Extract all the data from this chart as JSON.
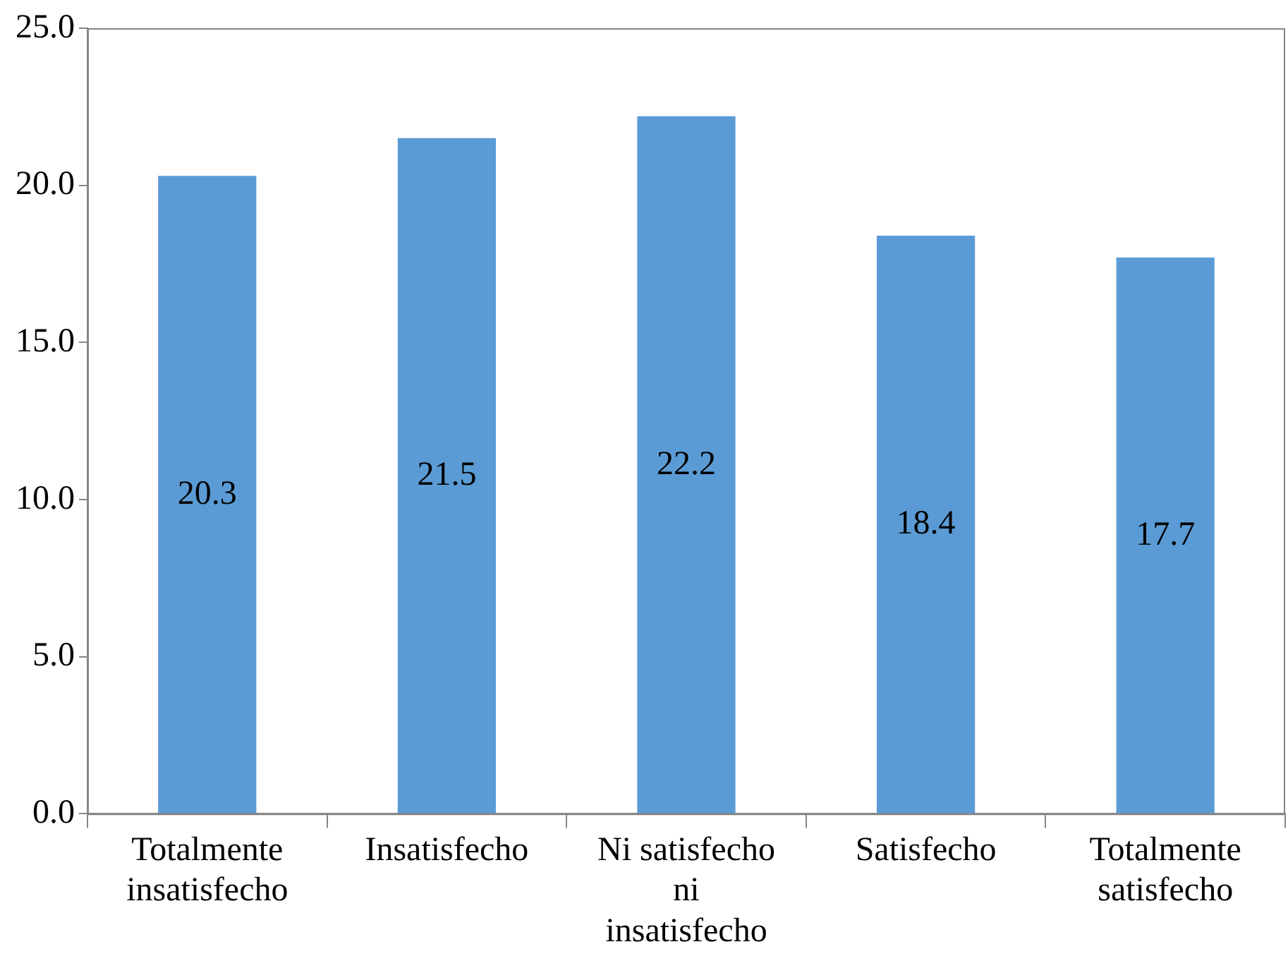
{
  "chart_data": {
    "type": "bar",
    "categories": [
      "Totalmente\ninsatisfecho",
      "Insatisfecho",
      "Ni satisfecho\nni\ninsatisfecho",
      "Satisfecho",
      "Totalmente\nsatisfecho"
    ],
    "values": [
      20.3,
      21.5,
      22.2,
      18.4,
      17.7
    ],
    "color": "#5b9bd5",
    "ylim": [
      0,
      25
    ],
    "yticks": [
      {
        "value": 0,
        "label": "0.0"
      },
      {
        "value": 5,
        "label": "5.0"
      },
      {
        "value": 10,
        "label": "10.0"
      },
      {
        "value": 15,
        "label": "15.0"
      },
      {
        "value": 20,
        "label": "20.0"
      },
      {
        "value": 25,
        "label": "25.0"
      }
    ],
    "grid": false,
    "legend": false,
    "data_labels": true
  }
}
